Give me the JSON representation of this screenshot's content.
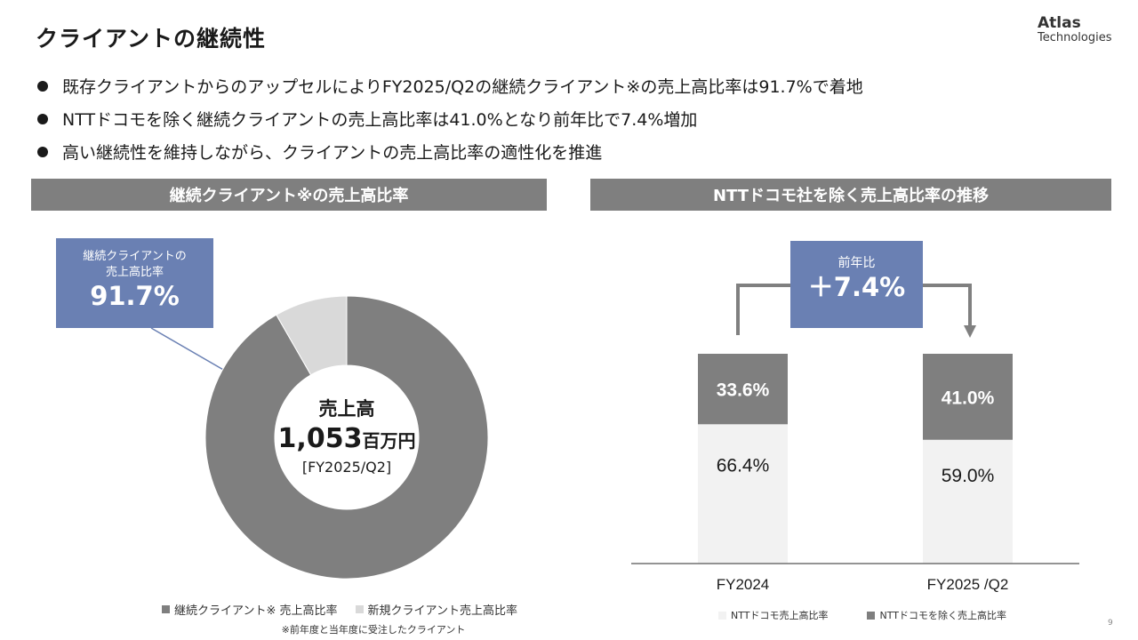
{
  "title": "クライアントの継続性",
  "logo": {
    "line1": "Atlas",
    "line2": "Technologies"
  },
  "bullets": [
    "既存クライアントからのアップセルによりFY2025/Q2の継続クライアント※の売上高比率は91.7%で着地",
    "NTTドコモを除く継続クライアントの売上高比率は41.0%となり前年比で7.4%増加",
    "高い継続性を維持しながら、クライアントの売上高比率の適性化を推進"
  ],
  "left_panel": {
    "header": "継続クライアント※の売上高比率",
    "callout": {
      "line1": "継続クライアントの",
      "line2": "売上高比率",
      "value": "91.7%"
    },
    "center": {
      "label": "売上高",
      "value": "1,053",
      "unit": "百万円",
      "period": "[FY2025/Q2]"
    },
    "legend": [
      "継続クライアント※ 売上高比率",
      "新規クライアント売上高比率"
    ],
    "footnote": "※前年度と当年度に受注したクライアント"
  },
  "right_panel": {
    "header": "NTTドコモ社を除く売上高比率の推移",
    "yoy": {
      "label": "前年比",
      "value": "＋7.4%"
    },
    "legend": [
      "NTTドコモ売上高比率",
      "NTTドコモを除く売上高比率"
    ]
  },
  "page_number": "9",
  "colors": {
    "dark_gray": "#7f7f7f",
    "light_gray": "#d9d9d9",
    "pale_gray": "#f2f2f2",
    "accent_blue": "#6a80b3",
    "axis": "#555555"
  },
  "chart_data": [
    {
      "type": "pie",
      "variant": "donut",
      "title": "継続クライアント※の売上高比率",
      "categories": [
        "継続クライアント※ 売上高比率",
        "新規クライアント売上高比率"
      ],
      "values": [
        91.7,
        8.3
      ],
      "legend": "bottom"
    },
    {
      "type": "bar",
      "variant": "stacked-100",
      "title": "NTTドコモ社を除く売上高比率の推移",
      "categories": [
        "FY2024",
        "FY2025 /Q2"
      ],
      "series": [
        {
          "name": "NTTドコモ売上高比率",
          "values": [
            66.4,
            59.0
          ],
          "labels": [
            "66.4%",
            "59.0%"
          ]
        },
        {
          "name": "NTTドコモを除く売上高比率",
          "values": [
            33.6,
            41.0
          ],
          "labels": [
            "33.6%",
            "41.0%"
          ]
        }
      ],
      "ylim": [
        0,
        100
      ],
      "legend": "bottom"
    }
  ]
}
